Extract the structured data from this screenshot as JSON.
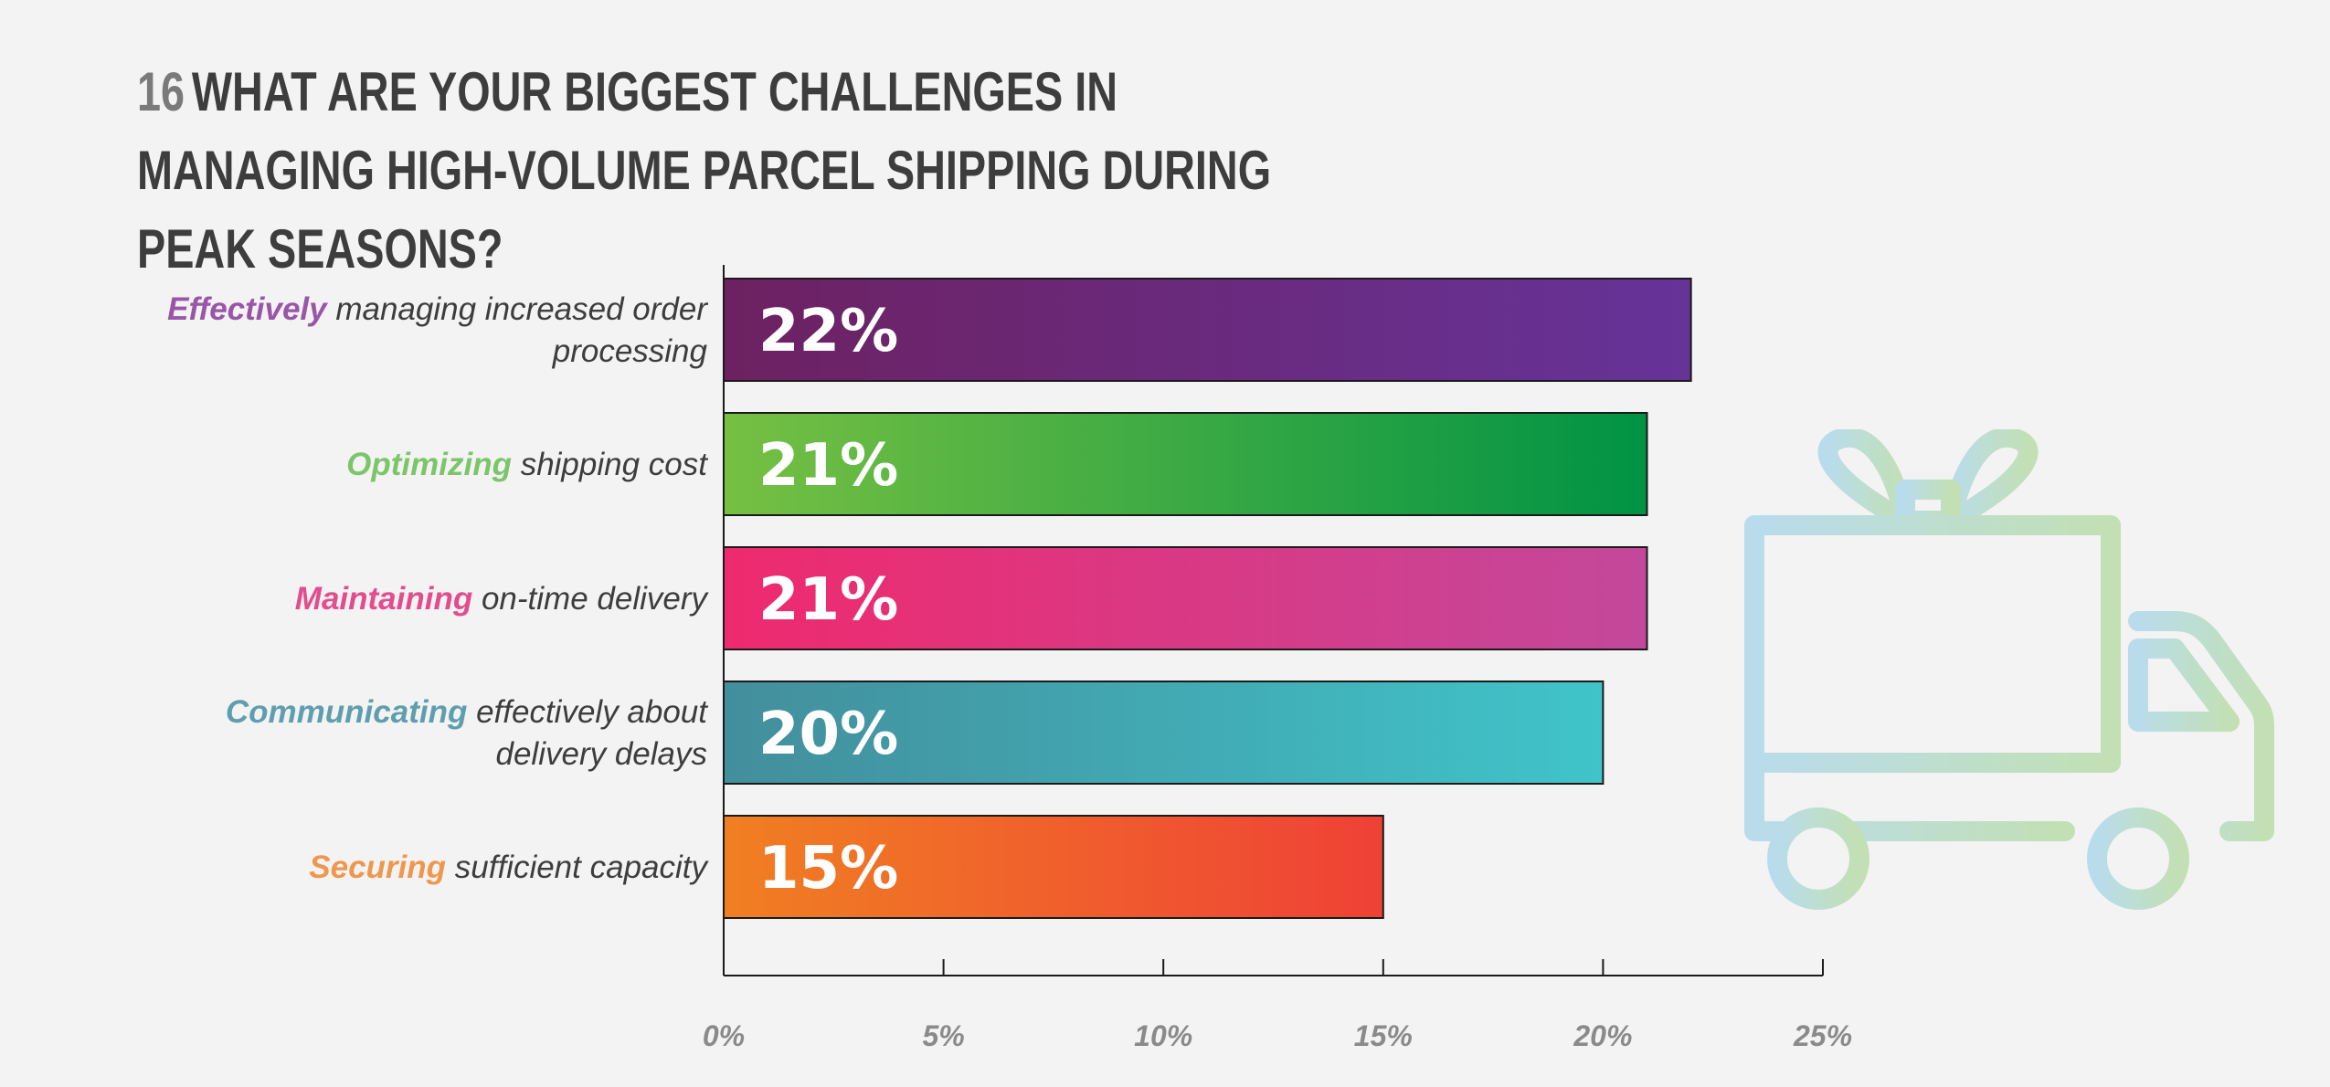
{
  "title": {
    "number": "16",
    "text": "WHAT ARE YOUR BIGGEST CHALLENGES IN MANAGING HIGH-VOLUME PARCEL SHIPPING DURING PEAK SEASONS?"
  },
  "chart_data": {
    "type": "bar",
    "orientation": "horizontal",
    "title": "WHAT ARE YOUR BIGGEST CHALLENGES IN MANAGING HIGH-VOLUME PARCEL SHIPPING DURING PEAK SEASONS?",
    "xlabel": "",
    "ylabel": "",
    "xlim": [
      0,
      25
    ],
    "grid": false,
    "legend": "none",
    "categories": [
      {
        "highlight": "Effectively",
        "rest": " managing increased order processing",
        "lines": [
          [
            "Effectively",
            " managing increased order"
          ],
          [
            "",
            "processing"
          ]
        ],
        "value": 22,
        "value_label": "22%",
        "color_start": "#6d2161",
        "color_end": "#663399",
        "highlight_color": "#9a55a8"
      },
      {
        "highlight": "Optimizing",
        "rest": " shipping cost",
        "lines": [
          [
            "Optimizing",
            " shipping cost"
          ]
        ],
        "value": 21,
        "value_label": "21%",
        "color_start": "#76c043",
        "color_end": "#009344",
        "highlight_color": "#7cc56b"
      },
      {
        "highlight": "Maintaining",
        "rest": " on-time delivery",
        "lines": [
          [
            "Maintaining",
            " on-time delivery"
          ]
        ],
        "value": 21,
        "value_label": "21%",
        "color_start": "#ef2a6e",
        "color_end": "#c3489b",
        "highlight_color": "#e24d8e"
      },
      {
        "highlight": "Communicating",
        "rest": " effectively about delivery delays",
        "lines": [
          [
            "Communicating",
            " effectively about"
          ],
          [
            "",
            "delivery delays"
          ]
        ],
        "value": 20,
        "value_label": "20%",
        "color_start": "#438e9c",
        "color_end": "#40c4c9",
        "highlight_color": "#5f9eae"
      },
      {
        "highlight": "Securing",
        "rest": " sufficient capacity",
        "lines": [
          [
            "Securing",
            " sufficient capacity"
          ]
        ],
        "value": 15,
        "value_label": "15%",
        "color_start": "#f07f22",
        "color_end": "#ef4136",
        "highlight_color": "#f0974f"
      }
    ],
    "ticks": [
      {
        "value": 0,
        "label": "0%"
      },
      {
        "value": 5,
        "label": "5%"
      },
      {
        "value": 10,
        "label": "10%"
      },
      {
        "value": 15,
        "label": "15%"
      },
      {
        "value": 20,
        "label": "20%"
      },
      {
        "value": 25,
        "label": "25%"
      }
    ]
  },
  "decoration": {
    "icon": "gift-delivery-truck-icon",
    "color_blue": "#b9dcec",
    "color_green": "#c2e0b4"
  }
}
